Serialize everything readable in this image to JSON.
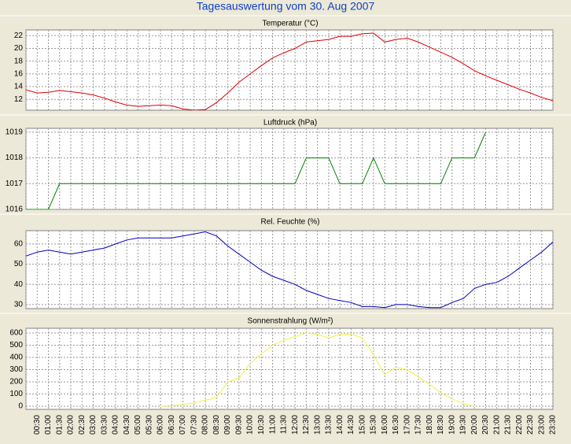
{
  "title": "Tagesauswertung vom 30. Aug 2007",
  "chart_data": [
    {
      "type": "line",
      "title": "Temperatur (°C)",
      "color": "#e00000",
      "grid": true,
      "ylim": [
        10.3,
        22.9
      ],
      "yticks": [
        12,
        14,
        16,
        18,
        20,
        22
      ],
      "values": [
        13.5,
        13.0,
        13.1,
        13.4,
        13.2,
        13.0,
        12.7,
        12.2,
        11.6,
        11.1,
        10.9,
        11.0,
        11.1,
        11.0,
        10.5,
        10.3,
        10.4,
        11.5,
        13.0,
        14.7,
        16.0,
        17.3,
        18.5,
        19.3,
        20.0,
        21.0,
        21.2,
        21.4,
        21.9,
        21.9,
        22.3,
        22.4,
        21.0,
        21.4,
        21.6,
        21.0,
        20.2,
        19.4,
        18.6,
        17.6,
        16.5,
        15.7,
        15.0,
        14.3,
        13.6,
        13.0,
        12.3,
        11.8
      ]
    },
    {
      "type": "line",
      "title": "Luftdruck (hPa)",
      "color": "#008000",
      "grid": true,
      "ylim": [
        1016,
        1019.15
      ],
      "yticks": [
        1016,
        1017,
        1018,
        1019
      ],
      "values": [
        1016,
        1016,
        1016,
        1017,
        1017,
        1017,
        1017,
        1017,
        1017,
        1017,
        1017,
        1017,
        1017,
        1017,
        1017,
        1017,
        1017,
        1017,
        1017,
        1017,
        1017,
        1017,
        1017,
        1017,
        1017,
        1018,
        1018,
        1018,
        1017,
        1017,
        1017,
        1018,
        1017,
        1017,
        1017,
        1017,
        1017,
        1017,
        1018,
        1018,
        1018,
        1019,
        null,
        null,
        null,
        null,
        null,
        null
      ]
    },
    {
      "type": "line",
      "title": "Rel. Feuchte (%)",
      "color": "#0000c0",
      "grid": true,
      "ylim": [
        28,
        66.6
      ],
      "yticks": [
        30,
        40,
        50,
        60
      ],
      "values": [
        54,
        56,
        57,
        56,
        55,
        56,
        57,
        58,
        60,
        62,
        63,
        63,
        63,
        63,
        64,
        65,
        66,
        64,
        59,
        55,
        51,
        47,
        44,
        42,
        40,
        37,
        35,
        33,
        32,
        31,
        29,
        29,
        28.5,
        30,
        30,
        29,
        28.5,
        28.5,
        31,
        33,
        38,
        40,
        41,
        44,
        48,
        52,
        56,
        61
      ]
    },
    {
      "type": "line",
      "title": "Sonnenstrahlung (W/m²)",
      "color": "#f0f040",
      "grid": true,
      "ylim": [
        -26,
        639
      ],
      "yticks": [
        0,
        100,
        200,
        300,
        400,
        500,
        600
      ],
      "categories": [
        null,
        "00:30",
        "01:00",
        "01:30",
        "02:00",
        "02:30",
        "03:00",
        "03:30",
        "04:00",
        "04:30",
        "05:00",
        "05:30",
        "06:00",
        "06:30",
        "07:00",
        "07:30",
        "08:00",
        "08:30",
        "09:00",
        "09:30",
        "10:00",
        "10:30",
        "11:00",
        "11:30",
        "12:00",
        "12:30",
        "13:00",
        "13:30",
        "14:00",
        "14:30",
        "15:00",
        "15:30",
        "16:00",
        "16:30",
        "17:00",
        "17:30",
        "18:00",
        "18:30",
        "19:00",
        "19:30",
        "20:00",
        "20:30",
        "21:00",
        "21:30",
        "22:00",
        "22:30",
        "23:00",
        "23:30"
      ],
      "values": [
        null,
        null,
        null,
        null,
        null,
        null,
        null,
        null,
        null,
        null,
        null,
        null,
        0,
        5,
        15,
        25,
        50,
        70,
        200,
        230,
        350,
        430,
        500,
        540,
        570,
        600,
        590,
        560,
        590,
        590,
        560,
        420,
        260,
        320,
        300,
        240,
        180,
        110,
        60,
        20,
        0,
        null,
        null,
        null,
        null,
        null,
        null,
        null
      ]
    }
  ]
}
